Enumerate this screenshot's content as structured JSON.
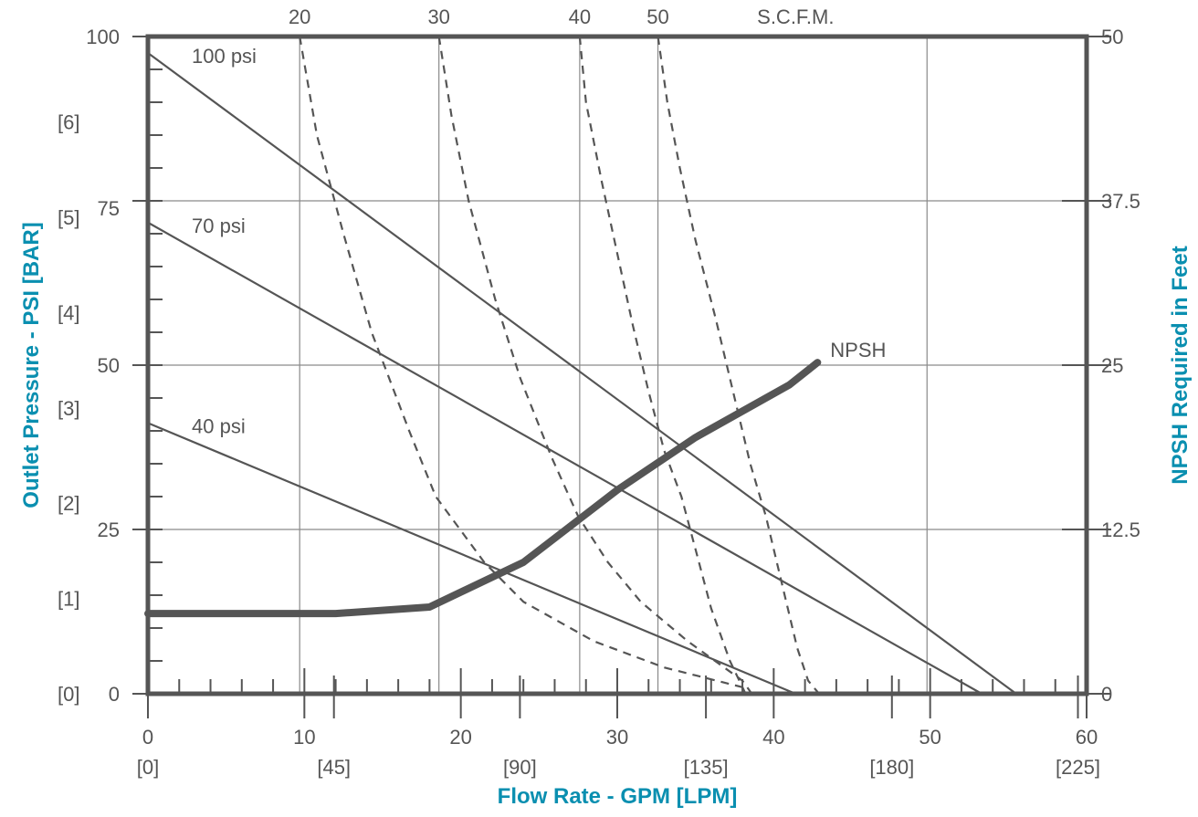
{
  "chart_data": {
    "type": "line",
    "title": "",
    "xlabel": "Flow Rate - GPM [LPM]",
    "ylabel": "Outlet Pressure - PSI [BAR]",
    "y2label": "NPSH Required in Feet",
    "xlim": [
      0,
      60
    ],
    "ylim": [
      0,
      100
    ],
    "y2lim": [
      0,
      50
    ],
    "grid": true,
    "x_ticks": [
      {
        "gpm": 0,
        "gpm_label": "0",
        "lpm_label": "[0]"
      },
      {
        "gpm": 10,
        "gpm_label": "10",
        "lpm_label": "[45]"
      },
      {
        "gpm": 20,
        "gpm_label": "20",
        "lpm_label": "[90]"
      },
      {
        "gpm": 30,
        "gpm_label": "30",
        "lpm_label": "[135]"
      },
      {
        "gpm": 40,
        "gpm_label": "40",
        "lpm_label": "[180]"
      },
      {
        "gpm": 50,
        "gpm_label": "50",
        "lpm_label": "[225]"
      },
      {
        "gpm": 60,
        "gpm_label": "60",
        "lpm_label": ""
      }
    ],
    "y_ticks_psi": [
      {
        "value": 0,
        "label": "0"
      },
      {
        "value": 25,
        "label": "25"
      },
      {
        "value": 50,
        "label": "50"
      },
      {
        "value": 75,
        "label": "75"
      },
      {
        "value": 100,
        "label": "100"
      }
    ],
    "y_ticks_bar": [
      {
        "psi": 0,
        "label": "[0]"
      },
      {
        "psi": 14.5,
        "label": "[1]"
      },
      {
        "psi": 29,
        "label": "[2]"
      },
      {
        "psi": 43.5,
        "label": "[3]"
      },
      {
        "psi": 58,
        "label": "[4]"
      },
      {
        "psi": 72.5,
        "label": "[5]"
      },
      {
        "psi": 87,
        "label": "[6]"
      }
    ],
    "y2_ticks": [
      {
        "value": 0,
        "label": "0"
      },
      {
        "value": 12.5,
        "label": "12.5"
      },
      {
        "value": 25,
        "label": "25"
      },
      {
        "value": 37.5,
        "label": "37.5"
      },
      {
        "value": 50,
        "label": "50"
      }
    ],
    "scfm_unit_label": "S.C.F.M.",
    "pressure_curves": [
      {
        "name": "100 psi",
        "points": [
          [
            0,
            97.5
          ],
          [
            55.5,
            0
          ]
        ]
      },
      {
        "name": "70 psi",
        "points": [
          [
            0,
            71.7
          ],
          [
            53.3,
            0
          ]
        ]
      },
      {
        "name": "40 psi",
        "points": [
          [
            0,
            41.2
          ],
          [
            41.4,
            0
          ]
        ]
      }
    ],
    "scfm_curves": [
      {
        "name": "20",
        "points": [
          [
            9.7,
            100
          ],
          [
            10.8,
            85
          ],
          [
            12.5,
            70
          ],
          [
            14.3,
            55
          ],
          [
            16.7,
            40
          ],
          [
            18.4,
            30
          ],
          [
            21.5,
            20
          ],
          [
            24,
            14
          ],
          [
            28.5,
            8
          ],
          [
            33,
            4
          ],
          [
            38,
            1
          ]
        ]
      },
      {
        "name": "30",
        "points": [
          [
            18.6,
            100
          ],
          [
            19.4,
            88
          ],
          [
            20.5,
            75
          ],
          [
            22.2,
            60
          ],
          [
            23.8,
            48
          ],
          [
            25.8,
            36
          ],
          [
            27.5,
            27
          ],
          [
            29.4,
            20
          ],
          [
            31.5,
            14
          ],
          [
            34.5,
            8
          ],
          [
            38,
            2
          ],
          [
            38.6,
            0
          ]
        ]
      },
      {
        "name": "40",
        "points": [
          [
            27.6,
            100
          ],
          [
            28,
            90
          ],
          [
            29,
            78
          ],
          [
            30,
            67
          ],
          [
            31,
            56
          ],
          [
            32,
            46
          ],
          [
            33,
            37
          ],
          [
            34.1,
            30
          ],
          [
            35,
            22
          ],
          [
            36,
            13
          ],
          [
            37.2,
            5
          ],
          [
            38.2,
            0
          ]
        ]
      },
      {
        "name": "50",
        "points": [
          [
            32.6,
            100
          ],
          [
            33.2,
            90
          ],
          [
            34,
            80
          ],
          [
            35,
            69
          ],
          [
            36.3,
            57
          ],
          [
            37.5,
            45
          ],
          [
            38.5,
            35
          ],
          [
            39.5,
            27
          ],
          [
            40.5,
            17
          ],
          [
            41.5,
            7
          ],
          [
            42.2,
            2
          ],
          [
            42.9,
            0
          ]
        ]
      }
    ],
    "npsh_curve": {
      "name": "NPSH",
      "points": [
        [
          0,
          6.1
        ],
        [
          12,
          6.1
        ],
        [
          18,
          6.6
        ],
        [
          24,
          10
        ],
        [
          30,
          15.5
        ],
        [
          35,
          19.5
        ],
        [
          41,
          23.5
        ],
        [
          42.8,
          25.2
        ]
      ]
    }
  }
}
